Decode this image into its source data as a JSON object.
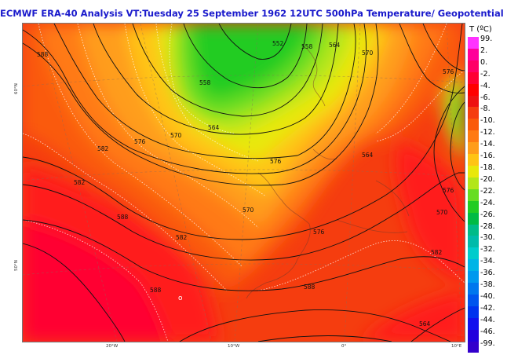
{
  "title": "ECMWF ERA-40  Analysis VT:Tuesday 25 September 1962 12UTC 500hPa Temperature/ Geopotential",
  "legend": {
    "title": "T (ºC)",
    "entries": [
      {
        "label": "99.",
        "color": "#ff33ff"
      },
      {
        "label": "2.",
        "color": "#ff0099"
      },
      {
        "label": "0.",
        "color": "#ff0066"
      },
      {
        "label": "-2.",
        "color": "#ff0033"
      },
      {
        "label": "-4.",
        "color": "#ff0000"
      },
      {
        "label": "-6.",
        "color": "#ee1111"
      },
      {
        "label": "-8.",
        "color": "#f53d0f"
      },
      {
        "label": "-10.",
        "color": "#fa5a0a"
      },
      {
        "label": "-12.",
        "color": "#ff7a12"
      },
      {
        "label": "-14.",
        "color": "#ff9d1a"
      },
      {
        "label": "-16.",
        "color": "#ffc414"
      },
      {
        "label": "-18.",
        "color": "#e8e80a"
      },
      {
        "label": "-20.",
        "color": "#b2e61a"
      },
      {
        "label": "-22.",
        "color": "#66dd22"
      },
      {
        "label": "-24.",
        "color": "#22cc22"
      },
      {
        "label": "-26.",
        "color": "#00bb44"
      },
      {
        "label": "-28.",
        "color": "#00bb88"
      },
      {
        "label": "-30.",
        "color": "#00bbaa"
      },
      {
        "label": "-32.",
        "color": "#00cccc"
      },
      {
        "label": "-34.",
        "color": "#00b4e6"
      },
      {
        "label": "-36.",
        "color": "#0099ee"
      },
      {
        "label": "-38.",
        "color": "#0077ee"
      },
      {
        "label": "-40.",
        "color": "#0055ee"
      },
      {
        "label": "-42.",
        "color": "#0033ee"
      },
      {
        "label": "-44.",
        "color": "#1111ee"
      },
      {
        "label": "-46.",
        "color": "#2200dd"
      },
      {
        "label": "-99.",
        "color": "#3300cc"
      }
    ]
  },
  "contour_labels": [
    "588",
    "582",
    "576",
    "570",
    "564",
    "558",
    "552",
    "558",
    "564",
    "570",
    "576",
    "582",
    "588",
    "576",
    "570",
    "564",
    "576",
    "582",
    "588",
    "582",
    "588",
    "576",
    "570",
    "564"
  ],
  "lon_labels": [
    "20°W",
    "10°W",
    "0°",
    "10°E"
  ],
  "lat_labels": [
    "60°N",
    "50°N"
  ],
  "marker_symbol": "o"
}
